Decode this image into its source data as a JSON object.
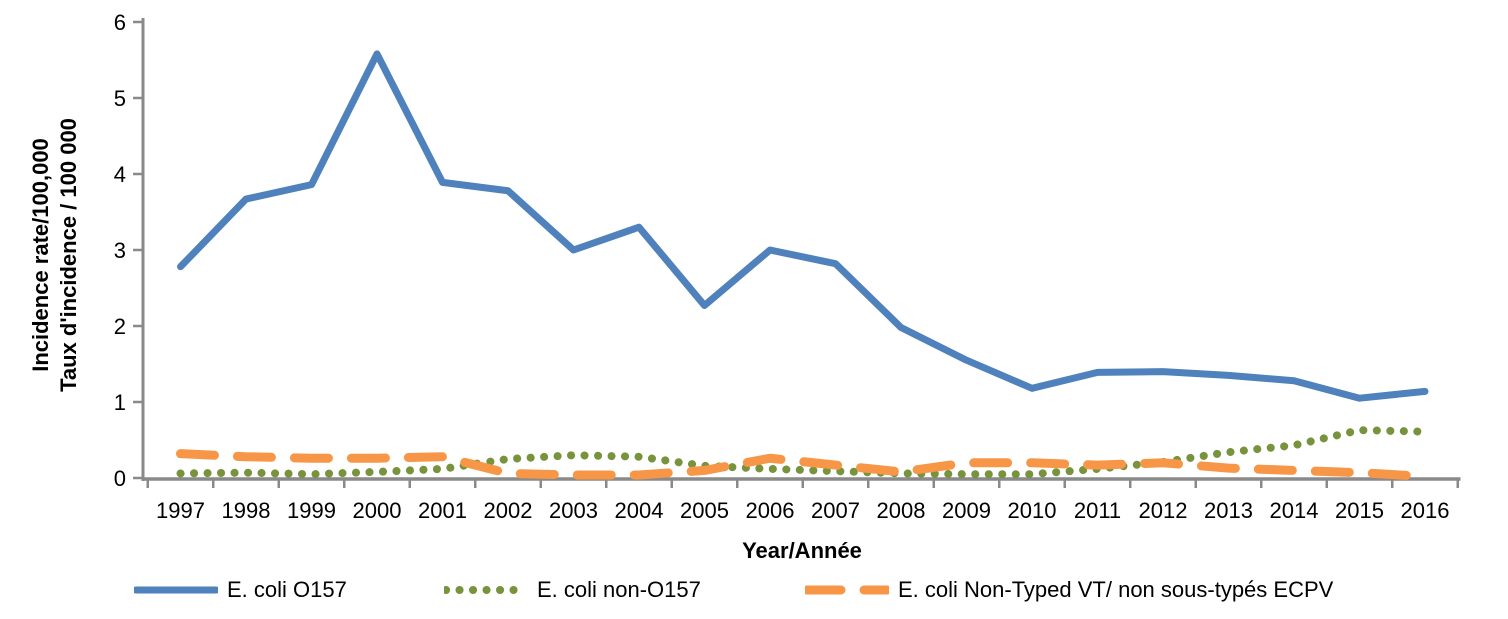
{
  "chart_data": {
    "type": "line",
    "title": "",
    "xlabel": "Year/Année",
    "ylabel_line1": "Incidence rate/100,000",
    "ylabel_line2": "Taux d'incidence / 100 000",
    "categories": [
      "1997",
      "1998",
      "1999",
      "2000",
      "2001",
      "2002",
      "2003",
      "2004",
      "2005",
      "2006",
      "2007",
      "2008",
      "2009",
      "2010",
      "2011",
      "2012",
      "2013",
      "2014",
      "2015",
      "2016"
    ],
    "ylim": [
      0,
      6
    ],
    "yticks": [
      0,
      1,
      2,
      3,
      4,
      5,
      6
    ],
    "grid": false,
    "legend_position": "bottom",
    "axis_color": "#8a8a8a",
    "text_color": "#000000",
    "series": [
      {
        "name": "E. coli O157",
        "color": "#4F81BD",
        "style": "solid",
        "values": [
          2.78,
          3.67,
          3.86,
          5.58,
          3.89,
          3.78,
          3.0,
          3.3,
          2.27,
          3.0,
          2.82,
          1.98,
          1.55,
          1.18,
          1.39,
          1.4,
          1.35,
          1.28,
          1.05,
          1.14
        ]
      },
      {
        "name": "E. coli non-O157",
        "color": "#77933C",
        "style": "dotted",
        "values": [
          0.06,
          0.07,
          0.05,
          0.08,
          0.12,
          0.25,
          0.3,
          0.28,
          0.16,
          0.12,
          0.09,
          0.06,
          0.05,
          0.05,
          0.12,
          0.21,
          0.34,
          0.43,
          0.63,
          0.61
        ]
      },
      {
        "name": "E. coli Non-Typed VT/ non sous-typés ECPV",
        "color": "#F79646",
        "style": "dashed",
        "values": [
          0.32,
          0.28,
          0.26,
          0.26,
          0.28,
          0.06,
          0.04,
          0.04,
          0.1,
          0.26,
          0.17,
          0.08,
          0.2,
          0.2,
          0.17,
          0.2,
          0.13,
          0.1,
          0.07,
          0.02
        ]
      }
    ]
  }
}
